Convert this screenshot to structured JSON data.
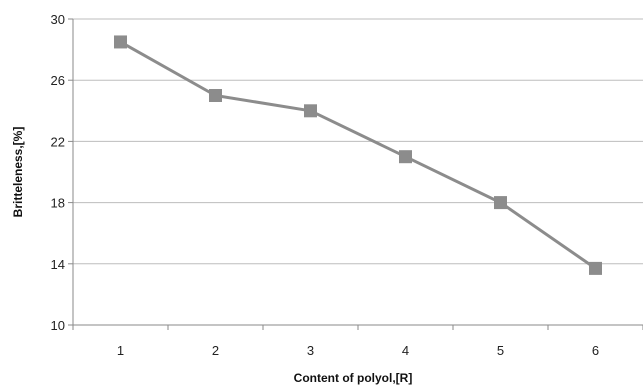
{
  "chart_data": {
    "type": "line",
    "title": "",
    "xlabel": "Content of polyol,[R]",
    "ylabel": "Britteleness,[%]",
    "categories": [
      "1",
      "2",
      "3",
      "4",
      "5",
      "6"
    ],
    "series": [
      {
        "values": [
          28.5,
          25.0,
          24.0,
          21.0,
          18.0,
          13.7
        ]
      }
    ],
    "ylim": [
      10,
      30
    ],
    "yticks": [
      "10",
      "14",
      "18",
      "22",
      "26",
      "30"
    ],
    "grid": true,
    "legend": "none",
    "marker": "square",
    "colors": {
      "line": "#8c8c8c",
      "marker": "#8c8c8c",
      "grid": "#bdbdbd",
      "axis": "#8a8a8a"
    }
  }
}
